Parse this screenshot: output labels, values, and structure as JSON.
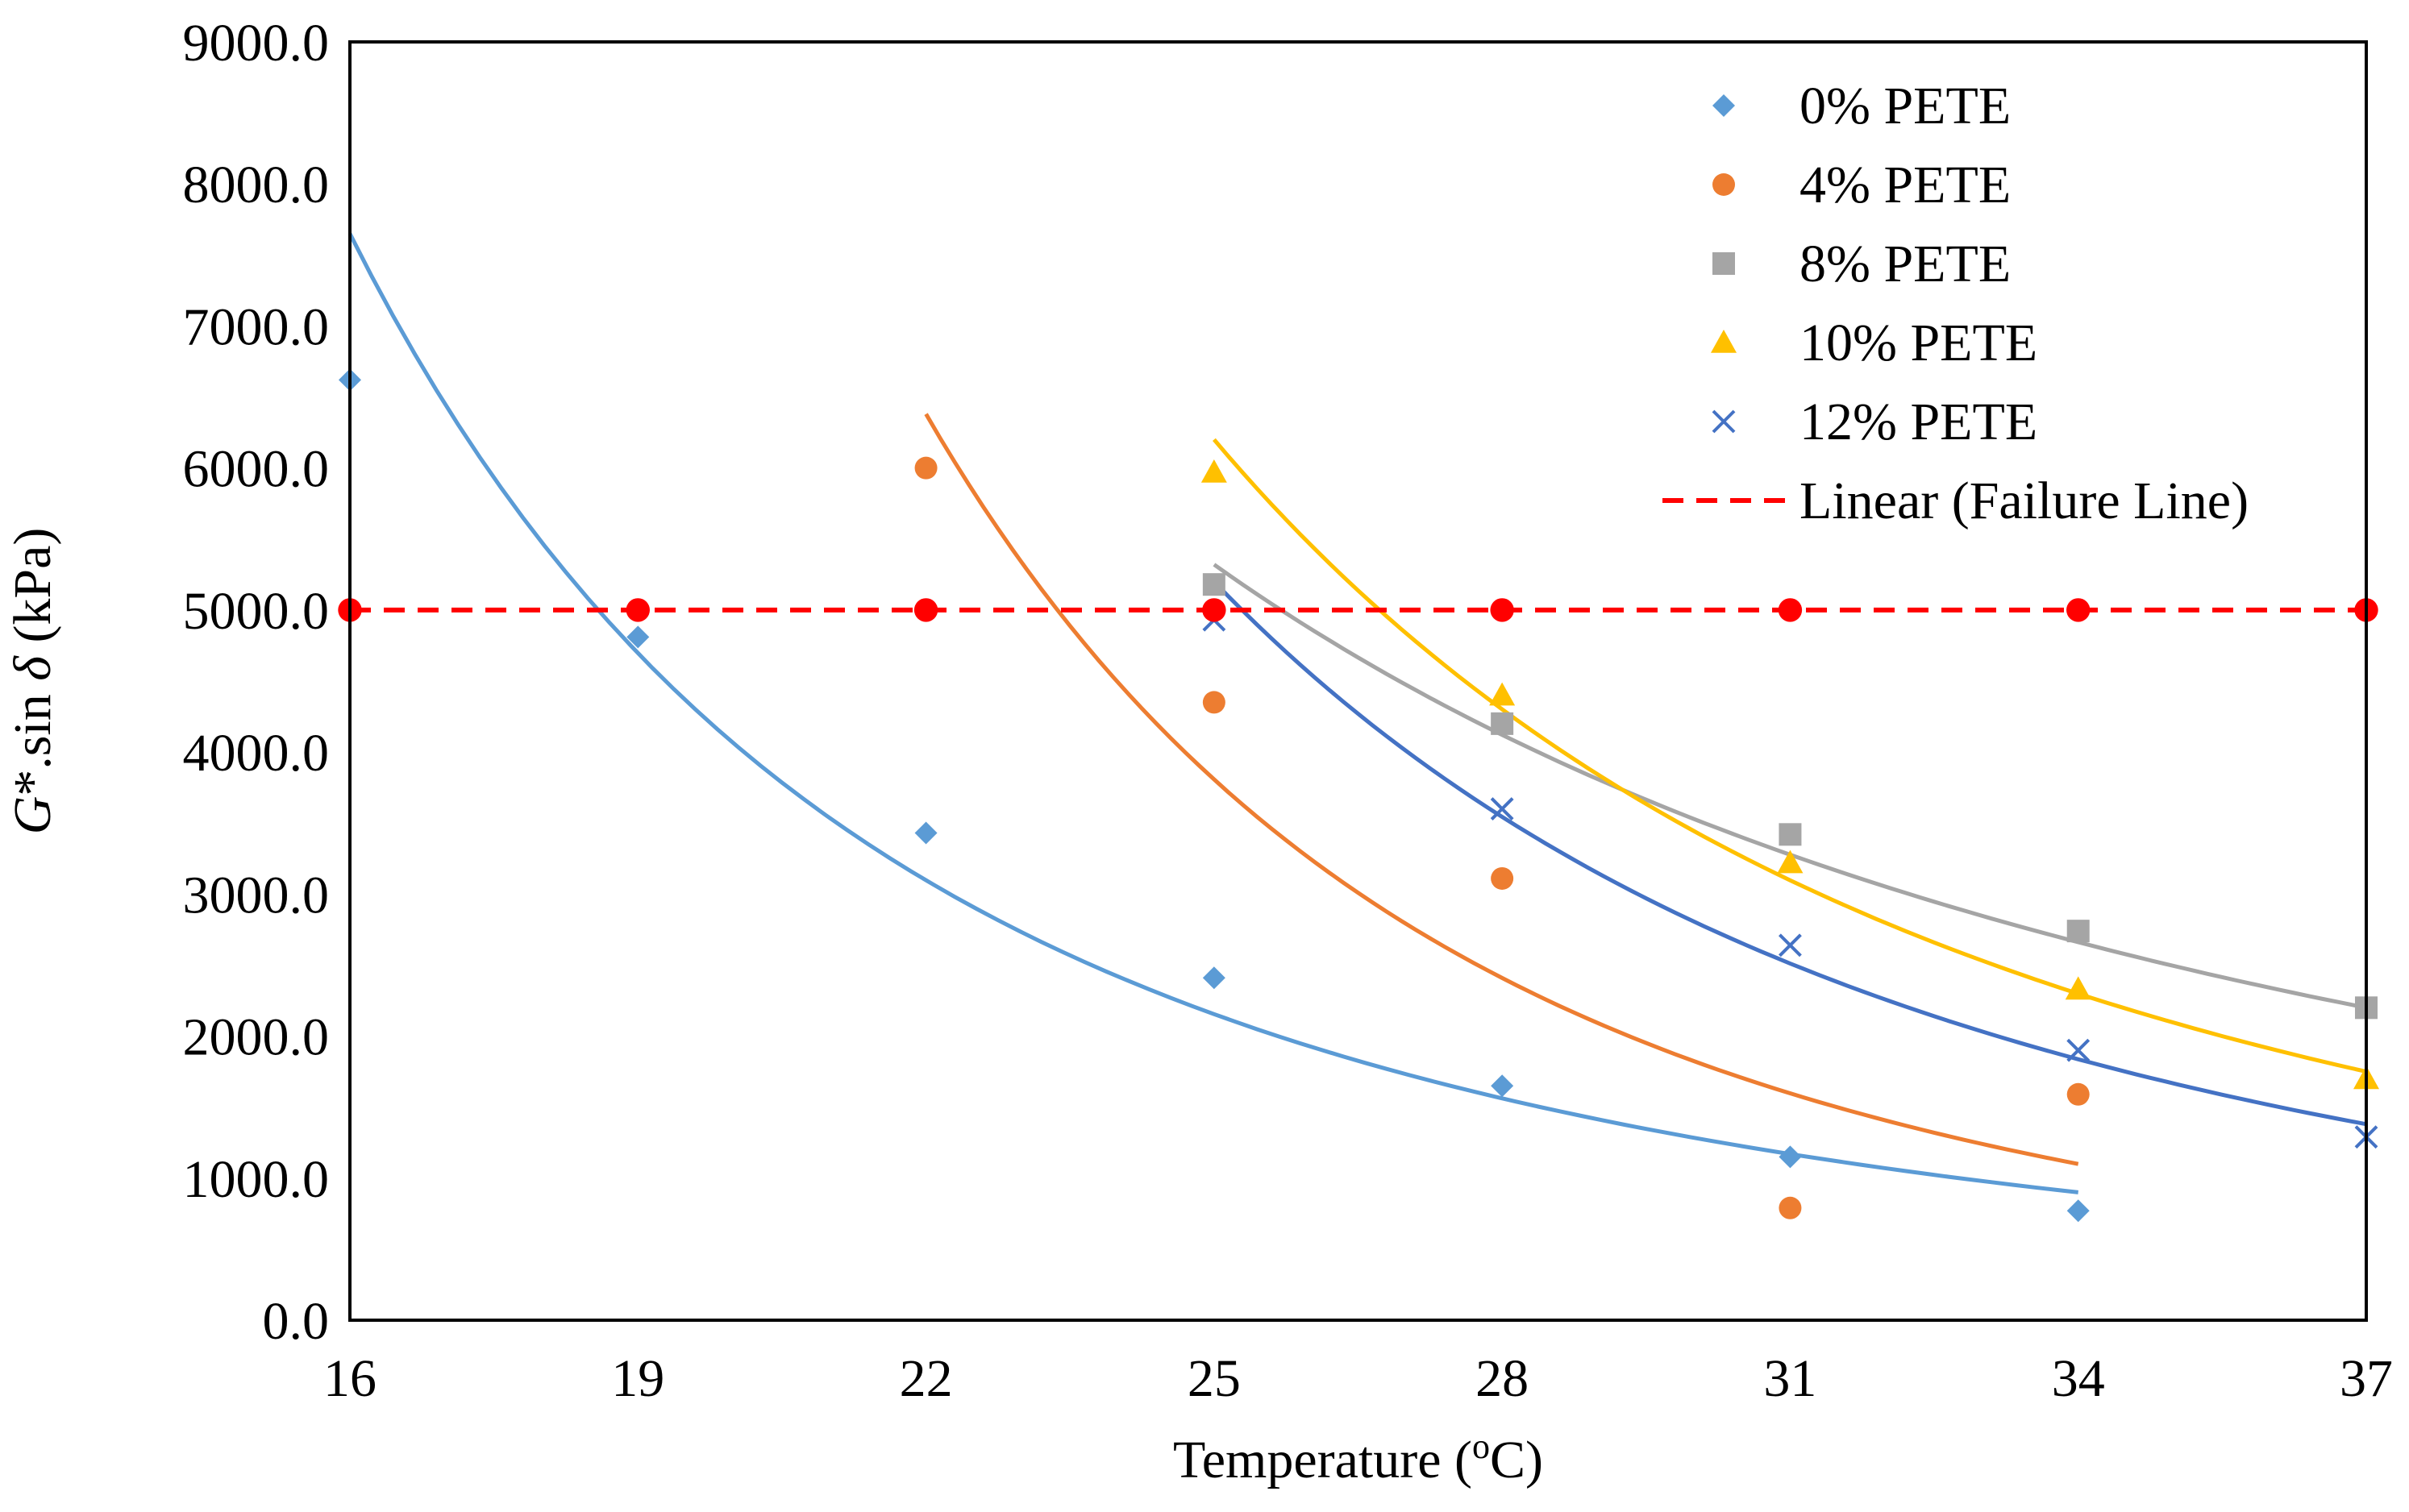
{
  "chart_data": {
    "type": "scatter",
    "title": "",
    "xlabel": "Temperature (",
    "xlabel_sup": "o",
    "xlabel_suffix": "C)",
    "ylabel_prefix": "G",
    "ylabel_star": "*",
    "ylabel_mid": ".sin ",
    "ylabel_delta": "δ",
    "ylabel_suffix": " (kPa)",
    "xlim": [
      16,
      37
    ],
    "ylim": [
      0,
      9000
    ],
    "x_ticks": [
      16,
      19,
      22,
      25,
      28,
      31,
      34,
      37
    ],
    "x_tick_labels": [
      "16",
      "19",
      "22",
      "25",
      "28",
      "31",
      "34",
      "37"
    ],
    "y_ticks": [
      0,
      1000,
      2000,
      3000,
      4000,
      5000,
      6000,
      7000,
      8000,
      9000
    ],
    "y_tick_labels": [
      "0.0",
      "1000.0",
      "2000.0",
      "3000.0",
      "4000.0",
      "5000.0",
      "6000.0",
      "7000.0",
      "8000.0",
      "9000.0"
    ],
    "grid": false,
    "legend_position": "top-right",
    "series": [
      {
        "name": "0% PETE",
        "marker": "diamond",
        "color": "#5B9BD5",
        "trend_color": "#5B9BD5",
        "x": [
          16,
          19,
          22,
          25,
          28,
          31,
          34
        ],
        "y": [
          6620,
          4810,
          3430,
          2410,
          1650,
          1150,
          770
        ],
        "trend_x": [
          16,
          34
        ],
        "trend_y": [
          7650,
          900
        ]
      },
      {
        "name": "4% PETE",
        "marker": "circle",
        "color": "#ED7D31",
        "trend_color": "#ED7D31",
        "x": [
          22,
          25,
          28,
          31
        ],
        "y": [
          6000,
          4350,
          3110,
          790
        ],
        "extra_x": [
          34
        ],
        "extra_y": [
          1590
        ],
        "trend_x": [
          22,
          34
        ],
        "trend_y": [
          6380,
          1100
        ]
      },
      {
        "name": "8% PETE",
        "marker": "square",
        "color": "#A5A5A5",
        "trend_color": "#A5A5A5",
        "x": [
          25,
          28,
          31,
          34,
          37
        ],
        "y": [
          5180,
          4200,
          3420,
          2740,
          2200
        ],
        "trend_x": [
          25,
          37
        ],
        "trend_y": [
          5320,
          2200
        ]
      },
      {
        "name": "10% PETE",
        "marker": "triangle",
        "color": "#FFC000",
        "trend_color": "#FFC000",
        "x": [
          25,
          28,
          31,
          34,
          37
        ],
        "y": [
          5970,
          4400,
          3220,
          2330,
          1700
        ],
        "trend_x": [
          25,
          37
        ],
        "trend_y": [
          6200,
          1750
        ]
      },
      {
        "name": "12% PETE",
        "marker": "x",
        "color": "#4472C4",
        "trend_color": "#4472C4",
        "x": [
          25,
          28,
          31,
          34,
          37
        ],
        "y": [
          4930,
          3600,
          2640,
          1900,
          1290
        ],
        "trend_x": [
          25,
          37
        ],
        "trend_y": [
          5200,
          1380
        ]
      },
      {
        "name": "Linear (Failure Line)",
        "marker": "circle",
        "color": "#FF0000",
        "line_style": "dashed",
        "x": [
          16,
          19,
          22,
          25,
          28,
          31,
          34,
          37
        ],
        "y": [
          5000,
          5000,
          5000,
          5000,
          5000,
          5000,
          5000,
          5000
        ]
      }
    ],
    "legend_entries": [
      "0% PETE",
      "4% PETE",
      "8% PETE",
      "10% PETE",
      "12% PETE",
      "Linear (Failure Line)"
    ]
  }
}
